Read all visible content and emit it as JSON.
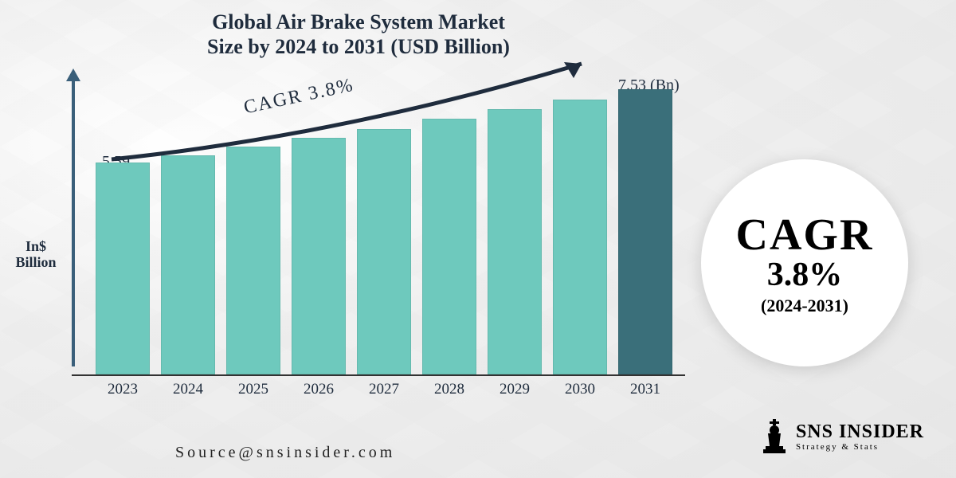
{
  "title": {
    "line1": "Global Air Brake System Market",
    "line2": "Size by 2024 to 2031 (USD Billion)"
  },
  "yaxis": {
    "label_line1": "In$",
    "label_line2": "Billion"
  },
  "chart": {
    "type": "bar",
    "cagr_label": "CAGR 3.8%",
    "first_value_label": "5.59",
    "last_value_label": "7.53 (Bn)",
    "categories": [
      "2023",
      "2024",
      "2025",
      "2026",
      "2027",
      "2028",
      "2029",
      "2030",
      "2031"
    ],
    "values": [
      5.59,
      5.8,
      6.02,
      6.25,
      6.49,
      6.75,
      7.01,
      7.27,
      7.53
    ],
    "bar_colors": [
      "#6ec9bd",
      "#6ec9bd",
      "#6ec9bd",
      "#6ec9bd",
      "#6ec9bd",
      "#6ec9bd",
      "#6ec9bd",
      "#6ec9bd",
      "#3a6f7a"
    ],
    "max_scale": 8.0,
    "arrow_color": "#1f2c3d",
    "axis_color": "#3a5f7a",
    "baseline_color": "#333333",
    "background": "#f0f0f0"
  },
  "badge": {
    "line1": "CAGR",
    "line2": "3.8%",
    "line3": "(2024-2031)",
    "bg": "#ffffff",
    "text_color": "#000000"
  },
  "source": "Source@snsinsider.com",
  "logo": {
    "name": "SNS INSIDER",
    "tagline": "Strategy & Stats"
  }
}
